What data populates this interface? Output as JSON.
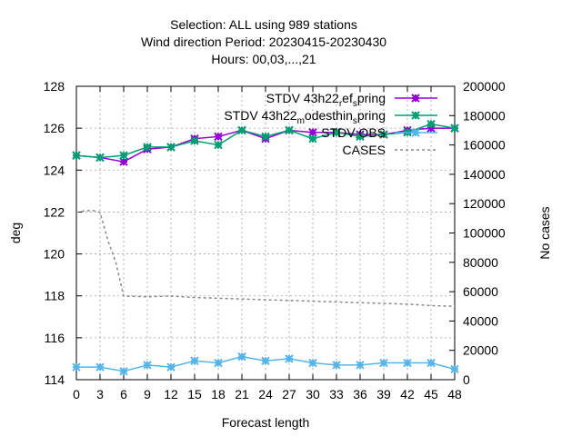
{
  "chart_data": {
    "type": "line",
    "title_lines": [
      "Selection: ALL using    989 stations",
      "Wind direction   Period: 20230415-20230430",
      "Hours:  00,03,...,21"
    ],
    "xlabel": "Forecast length",
    "ylabel": "deg",
    "y2label": "No cases",
    "x": [
      0,
      3,
      6,
      9,
      12,
      15,
      18,
      21,
      24,
      27,
      30,
      33,
      36,
      39,
      42,
      45,
      48
    ],
    "xlim": [
      0,
      48
    ],
    "ylim": [
      114,
      128
    ],
    "y2lim": [
      0,
      200000
    ],
    "yticks": [
      114,
      116,
      118,
      120,
      122,
      124,
      126,
      128
    ],
    "y2ticks": [
      0,
      20000,
      40000,
      60000,
      80000,
      100000,
      120000,
      140000,
      160000,
      180000,
      200000
    ],
    "grid": true,
    "legend_position": "top-right",
    "series": [
      {
        "legend_parts": [
          "STDV 43h22",
          "r",
          "ef",
          "s",
          "pring"
        ],
        "color": "#9400d3",
        "marker": "x-star",
        "axis": "y1",
        "values": [
          124.7,
          124.6,
          124.4,
          125.0,
          125.1,
          125.5,
          125.6,
          125.9,
          125.5,
          125.9,
          125.8,
          125.8,
          125.7,
          125.7,
          125.9,
          126.0,
          126.0
        ]
      },
      {
        "legend_parts": [
          "STDV 43h22",
          "m",
          "odesthin",
          "s",
          "pring"
        ],
        "color": "#009e73",
        "marker": "x-star",
        "axis": "y1",
        "values": [
          124.7,
          124.6,
          124.7,
          125.1,
          125.1,
          125.4,
          125.2,
          125.9,
          125.6,
          125.9,
          125.5,
          125.8,
          125.6,
          125.7,
          125.8,
          126.2,
          126.0
        ]
      },
      {
        "legend_parts": [
          "STDV OBS"
        ],
        "color": "#56b4e9",
        "marker": "x-star",
        "axis": "y1",
        "values": [
          114.6,
          114.6,
          114.4,
          114.7,
          114.6,
          114.9,
          114.8,
          115.1,
          114.9,
          115.0,
          114.8,
          114.7,
          114.7,
          114.8,
          114.8,
          114.8,
          114.5
        ]
      },
      {
        "legend_parts": [
          "CASES"
        ],
        "color": "#888888",
        "marker": "none",
        "dashed": true,
        "axis": "y2",
        "x": [
          0,
          1,
          2,
          3,
          4,
          5,
          6,
          9,
          12,
          15,
          18,
          21,
          24,
          27,
          30,
          33,
          36,
          39,
          42,
          45,
          48
        ],
        "values": [
          114000,
          115000,
          115500,
          114000,
          95000,
          80000,
          57000,
          56500,
          57000,
          56000,
          55500,
          55000,
          54500,
          54000,
          53500,
          53000,
          52500,
          52000,
          51500,
          50500,
          50000
        ]
      }
    ]
  }
}
